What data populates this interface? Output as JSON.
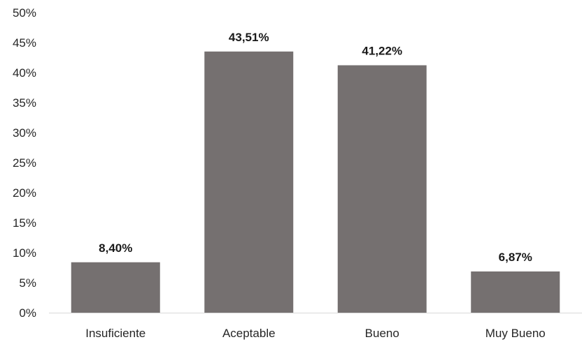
{
  "chart_data": {
    "type": "bar",
    "categories": [
      "Insuficiente",
      "Aceptable",
      "Bueno",
      "Muy Bueno"
    ],
    "values": [
      8.4,
      43.51,
      41.22,
      6.87
    ],
    "value_labels": [
      "8,40%",
      "43,51%",
      "41,22%",
      "6,87%"
    ],
    "title": "",
    "xlabel": "",
    "ylabel": "",
    "ylim": [
      0,
      50
    ],
    "yticks": [
      0,
      5,
      10,
      15,
      20,
      25,
      30,
      35,
      40,
      45,
      50
    ],
    "ytick_labels": [
      "0%",
      "5%",
      "10%",
      "15%",
      "20%",
      "25%",
      "30%",
      "35%",
      "40%",
      "45%",
      "50%"
    ],
    "grid": false,
    "legend": "none",
    "colors": {
      "bar": "#757070",
      "axis": "#d9d9d9",
      "text": "#262626"
    }
  }
}
